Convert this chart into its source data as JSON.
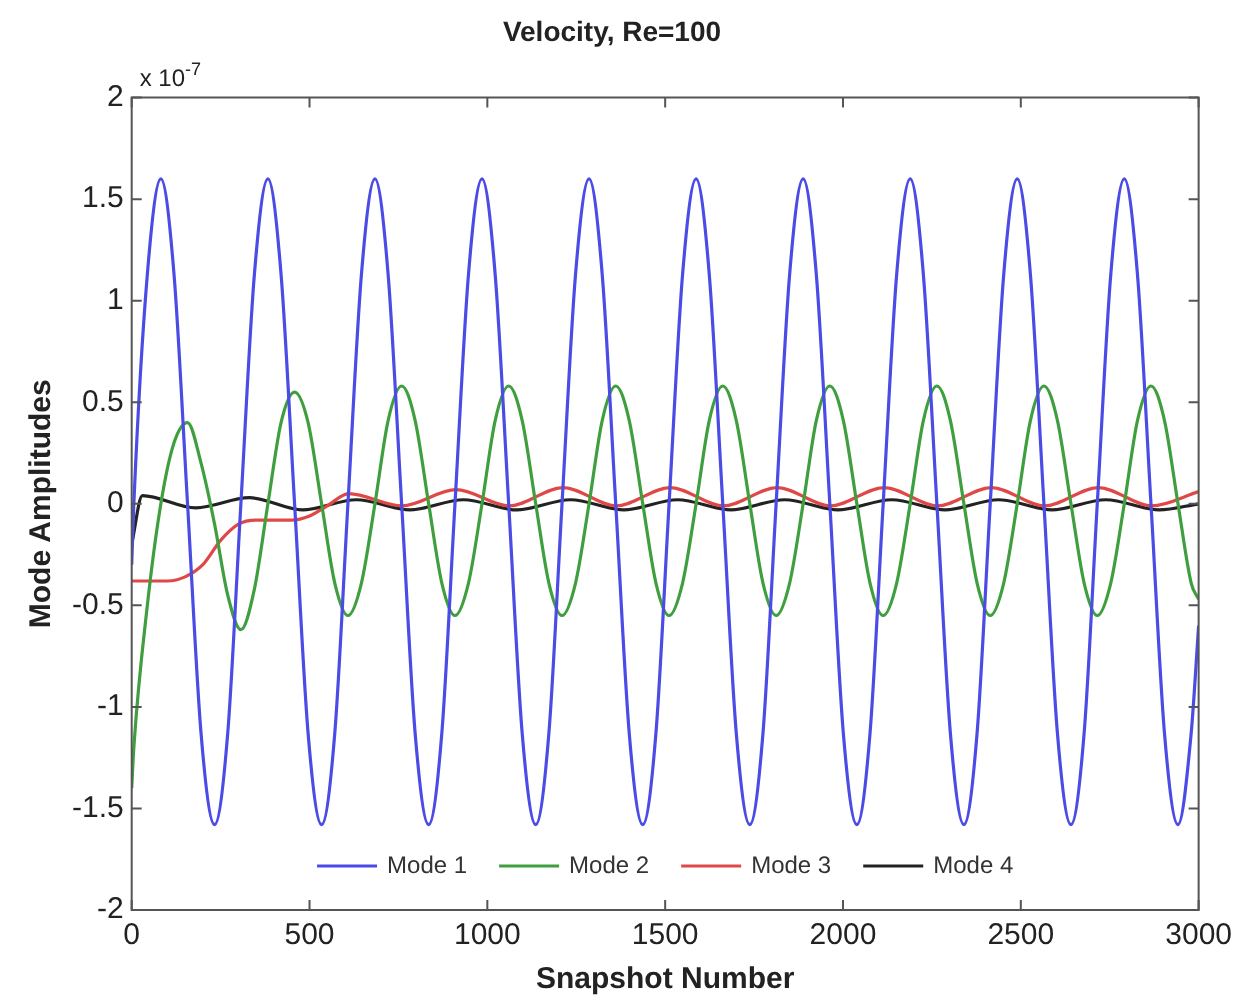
{
  "chart_data": {
    "type": "line",
    "title": "Velocity, Re=100",
    "xlabel": "Snapshot Number",
    "ylabel": "Mode Amplitudes",
    "annotations": [
      "x 10$^{-7}$"
    ],
    "xlim": [
      0,
      3000
    ],
    "xticks": [
      0,
      500,
      1000,
      1500,
      2000,
      2500,
      3000
    ],
    "ylim": [
      -2,
      2
    ],
    "yticks": [
      -2,
      -1.5,
      -1,
      -0.5,
      0,
      0.5,
      1,
      1.5,
      2
    ],
    "grid": false,
    "legend": "bottom",
    "marker": "none",
    "line_style": "solid",
    "series": [
      {
        "name": "Mode 1",
        "color": "#4b4be6",
        "x": [
          0,
          6,
          44,
          82,
          119,
          157,
          195,
          233,
          270,
          307,
          345,
          383,
          420,
          458,
          496,
          534,
          571,
          608,
          646,
          684,
          721,
          759,
          797,
          835,
          872,
          909,
          947,
          985,
          1022,
          1060,
          1098,
          1136,
          1173,
          1210,
          1248,
          1286,
          1323,
          1361,
          1399,
          1437,
          1474,
          1511,
          1549,
          1587,
          1624,
          1662,
          1700,
          1738,
          1775,
          1812,
          1850,
          1888,
          1925,
          1963,
          2001,
          2039,
          2076,
          2113,
          2151,
          2189,
          2226,
          2264,
          2302,
          2340,
          2377,
          2414,
          2452,
          2490,
          2527,
          2565,
          2603,
          2641,
          2678,
          2715,
          2753,
          2791,
          2828,
          2866,
          2904,
          2942,
          2979,
          3000
        ],
        "values": [
          -0.3,
          0,
          1.13,
          1.6,
          1.13,
          0,
          -1.13,
          -1.58,
          -1.13,
          0,
          1.13,
          1.6,
          1.13,
          0,
          -1.13,
          -1.58,
          -1.13,
          0,
          1.13,
          1.6,
          1.13,
          0,
          -1.13,
          -1.58,
          -1.13,
          0,
          1.13,
          1.6,
          1.13,
          0,
          -1.13,
          -1.58,
          -1.13,
          0,
          1.13,
          1.6,
          1.13,
          0,
          -1.13,
          -1.58,
          -1.13,
          0,
          1.13,
          1.6,
          1.13,
          0,
          -1.13,
          -1.58,
          -1.13,
          0,
          1.13,
          1.6,
          1.13,
          0,
          -1.13,
          -1.58,
          -1.13,
          0,
          1.13,
          1.6,
          1.13,
          0,
          -1.13,
          -1.58,
          -1.13,
          0,
          1.13,
          1.6,
          1.13,
          0,
          -1.13,
          -1.58,
          -1.13,
          0,
          1.13,
          1.6,
          1.13,
          0,
          -1.13,
          -1.58,
          -1.13,
          -0.6
        ]
      },
      {
        "name": "Mode 2",
        "color": "#3f9f3f",
        "x": [
          0,
          6,
          44,
          82,
          119,
          157,
          195,
          233,
          270,
          307,
          345,
          383,
          420,
          458,
          496,
          534,
          571,
          608,
          646,
          684,
          721,
          759,
          797,
          835,
          872,
          909,
          947,
          985,
          1022,
          1060,
          1098,
          1136,
          1173,
          1210,
          1248,
          1286,
          1323,
          1361,
          1399,
          1437,
          1474,
          1511,
          1549,
          1587,
          1624,
          1662,
          1700,
          1738,
          1775,
          1812,
          1850,
          1888,
          1925,
          1963,
          2001,
          2039,
          2076,
          2113,
          2151,
          2189,
          2226,
          2264,
          2302,
          2340,
          2377,
          2414,
          2452,
          2490,
          2527,
          2565,
          2603,
          2641,
          2678,
          2715,
          2753,
          2791,
          2828,
          2866,
          2904,
          2942,
          2979,
          3000
        ],
        "values": [
          -1.4,
          -1.2,
          -0.5,
          0,
          0.3,
          0.4,
          0.2,
          -0.1,
          -0.45,
          -0.62,
          -0.42,
          0,
          0.4,
          0.55,
          0.4,
          0,
          -0.39,
          -0.55,
          -0.39,
          0,
          0.41,
          0.58,
          0.41,
          0,
          -0.39,
          -0.55,
          -0.39,
          0,
          0.41,
          0.58,
          0.41,
          0,
          -0.39,
          -0.55,
          -0.39,
          0,
          0.41,
          0.58,
          0.41,
          0,
          -0.39,
          -0.55,
          -0.39,
          0,
          0.41,
          0.58,
          0.41,
          0,
          -0.39,
          -0.55,
          -0.39,
          0,
          0.41,
          0.58,
          0.41,
          0,
          -0.39,
          -0.55,
          -0.39,
          0,
          0.41,
          0.58,
          0.41,
          0,
          -0.39,
          -0.55,
          -0.39,
          0,
          0.41,
          0.58,
          0.41,
          0,
          -0.39,
          -0.55,
          -0.39,
          0,
          0.41,
          0.58,
          0.41,
          0,
          -0.39,
          -0.47
        ]
      },
      {
        "name": "Mode 3",
        "color": "#e04848",
        "x": [
          0,
          100,
          150,
          200,
          250,
          300,
          350,
          450,
          500,
          550,
          610,
          760,
          912,
          1062,
          1213,
          1363,
          1514,
          1664,
          1815,
          1965,
          2116,
          2266,
          2417,
          2567,
          2718,
          2868,
          3000
        ],
        "values": [
          -0.38,
          -0.38,
          -0.36,
          -0.3,
          -0.18,
          -0.1,
          -0.08,
          -0.08,
          -0.06,
          -0.01,
          0.05,
          -0.01,
          0.07,
          -0.01,
          0.08,
          -0.01,
          0.08,
          -0.01,
          0.08,
          -0.01,
          0.08,
          -0.01,
          0.08,
          -0.01,
          0.08,
          -0.01,
          0.06
        ]
      },
      {
        "name": "Mode 4",
        "color": "#222222",
        "x": [
          0,
          30,
          180,
          331,
          481,
          632,
          782,
          933,
          1083,
          1234,
          1384,
          1535,
          1685,
          1836,
          1986,
          2137,
          2287,
          2438,
          2588,
          2739,
          2889,
          3000
        ],
        "values": [
          -0.2,
          0.04,
          -0.02,
          0.03,
          -0.03,
          0.02,
          -0.03,
          0.02,
          -0.03,
          0.02,
          -0.03,
          0.02,
          -0.03,
          0.02,
          -0.03,
          0.02,
          -0.03,
          0.02,
          -0.03,
          0.02,
          -0.03,
          0.0
        ]
      }
    ]
  }
}
